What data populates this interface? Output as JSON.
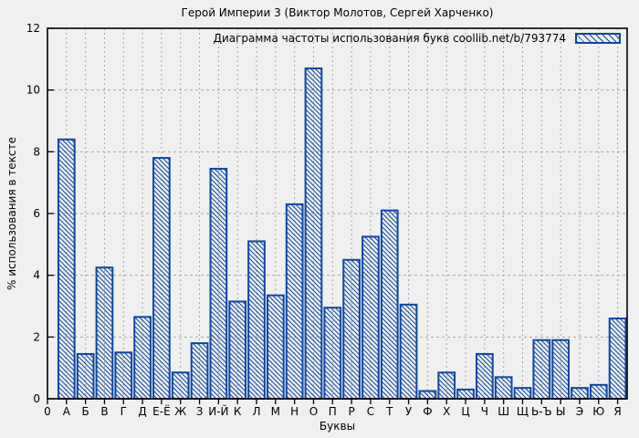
{
  "page": {
    "background": "#f0f0f0"
  },
  "chart_data": {
    "type": "bar",
    "title": "Герой Империи 3 (Виктор Молотов, Сергей Харченко)",
    "legend_label": "Диаграмма частоты использования букв coollib.net/b/793774",
    "legend_position": "top-right-inside",
    "xlabel": "Буквы",
    "ylabel": "% использования в тексте",
    "origin_tick_label": "0",
    "ylim": [
      0,
      12
    ],
    "ytick_step": 2,
    "ytick_labels": [
      "0",
      "2",
      "4",
      "6",
      "8",
      "10",
      "12"
    ],
    "grid": "dashed",
    "bar_style": "diagonal-hatch-outline",
    "categories": [
      "А",
      "Б",
      "В",
      "Г",
      "Д",
      "Е-Ё",
      "Ж",
      "З",
      "И-Й",
      "К",
      "Л",
      "М",
      "Н",
      "О",
      "П",
      "Р",
      "С",
      "Т",
      "У",
      "Ф",
      "Х",
      "Ц",
      "Ч",
      "Ш",
      "Щ",
      "Ь-Ъ",
      "Ы",
      "Э",
      "Ю",
      "Я"
    ],
    "values": [
      8.4,
      1.45,
      4.25,
      1.5,
      2.65,
      7.8,
      0.85,
      1.8,
      7.45,
      3.15,
      5.1,
      3.35,
      6.3,
      10.7,
      2.95,
      4.5,
      5.25,
      6.1,
      3.05,
      0.25,
      0.85,
      0.3,
      1.45,
      0.7,
      0.35,
      1.9,
      1.9,
      0.35,
      0.45,
      2.6
    ],
    "colors": {
      "bar_hatch": "#0c47a1",
      "grid": "#a6a6a6",
      "frame": "#000000",
      "text": "#000000",
      "background": "#f0f0f0"
    }
  }
}
